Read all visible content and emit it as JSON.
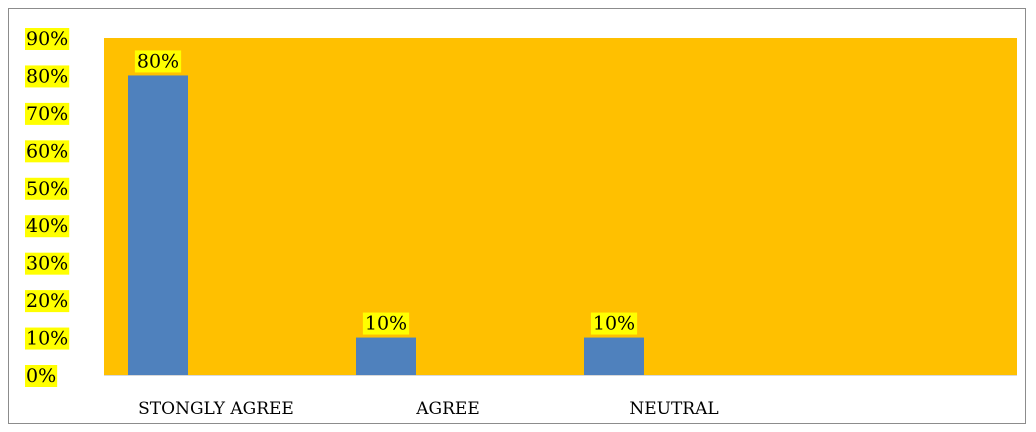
{
  "chart_data": {
    "type": "bar",
    "categories": [
      "STONGLY AGREE",
      "AGREE",
      "NEUTRAL"
    ],
    "values": [
      80,
      10,
      10
    ],
    "data_labels": [
      "80%",
      "10%",
      "10%"
    ],
    "ylim": [
      0,
      90
    ],
    "y_ticks": [
      "0%",
      "10%",
      "20%",
      "30%",
      "40%",
      "50%",
      "60%",
      "70%",
      "80%",
      "90%"
    ],
    "title": "",
    "xlabel": "",
    "ylabel": "",
    "grid": false,
    "legend": "none",
    "colors": {
      "bar": "#4f81bd",
      "plot_area": "#ffc000",
      "label_highlight": "#ffff00",
      "frame": "#8c8c8c"
    }
  }
}
